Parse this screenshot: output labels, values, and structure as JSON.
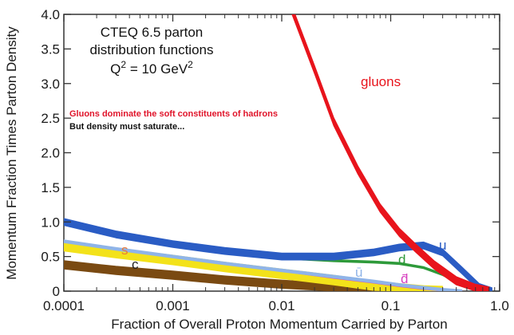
{
  "chart_data": {
    "type": "area",
    "xscale": "log",
    "xlim": [
      0.0001,
      1.0
    ],
    "ylim": [
      0,
      4.0
    ],
    "xlabel": "Fraction of Overall Proton Momentum Carried by Parton",
    "ylabel": "Momentum Fraction Times Parton Density",
    "x_ticks": [
      {
        "value": 0.0001,
        "label": "0.0001"
      },
      {
        "value": 0.001,
        "label": "0.001"
      },
      {
        "value": 0.01,
        "label": "0.01"
      },
      {
        "value": 0.1,
        "label": "0.1"
      },
      {
        "value": 1.0,
        "label": "1.0"
      }
    ],
    "y_ticks": [
      {
        "value": 0,
        "label": "0"
      },
      {
        "value": 0.5,
        "label": "0.5"
      },
      {
        "value": 1.0,
        "label": "1.0"
      },
      {
        "value": 1.5,
        "label": "1.5"
      },
      {
        "value": 2.0,
        "label": "2.0"
      },
      {
        "value": 2.5,
        "label": "2.5"
      },
      {
        "value": 3.0,
        "label": "3.0"
      },
      {
        "value": 3.5,
        "label": "3.5"
      },
      {
        "value": 4.0,
        "label": "4.0"
      }
    ],
    "info_box": {
      "line1": "CTEQ 6.5 parton",
      "line2": "distribution functions",
      "line3_prefix": "Q",
      "line3_sup": "2",
      "line3_mid": " = 10 GeV",
      "line3_sup2": "2"
    },
    "annotations": [
      {
        "text": "Gluons dominate the soft constituents of hadrons",
        "color": "#e0142a"
      },
      {
        "text": "But density must saturate...",
        "color": "#111111"
      }
    ],
    "series": [
      {
        "name": "gluons",
        "color": "#e8141c",
        "x": [
          0.0125,
          0.02,
          0.03,
          0.05,
          0.08,
          0.12,
          0.17,
          0.25,
          0.4,
          0.6,
          0.8
        ],
        "y": [
          4.05,
          3.2,
          2.45,
          1.75,
          1.2,
          0.85,
          0.62,
          0.38,
          0.15,
          0.04,
          0.0
        ],
        "band": 0.12
      },
      {
        "name": "u",
        "color": "#2a5cc4",
        "x": [
          0.0001,
          0.0003,
          0.001,
          0.003,
          0.01,
          0.03,
          0.07,
          0.12,
          0.2,
          0.3,
          0.45,
          0.65,
          0.85
        ],
        "y": [
          1.0,
          0.82,
          0.68,
          0.58,
          0.5,
          0.5,
          0.56,
          0.63,
          0.66,
          0.56,
          0.3,
          0.06,
          0.0
        ],
        "band": 0.1
      },
      {
        "name": "d",
        "color": "#2e9a3a",
        "x": [
          0.0001,
          0.0003,
          0.001,
          0.003,
          0.01,
          0.03,
          0.07,
          0.12,
          0.2,
          0.3,
          0.45,
          0.65,
          0.85
        ],
        "y": [
          0.98,
          0.8,
          0.66,
          0.56,
          0.48,
          0.44,
          0.42,
          0.4,
          0.34,
          0.24,
          0.1,
          0.02,
          0.0
        ],
        "band": 0.03
      },
      {
        "name": "ū",
        "color": "#8fb4e8",
        "x": [
          0.0001,
          0.0003,
          0.001,
          0.003,
          0.01,
          0.03,
          0.07,
          0.12,
          0.2,
          0.3,
          0.45
        ],
        "y": [
          0.72,
          0.61,
          0.5,
          0.4,
          0.3,
          0.21,
          0.14,
          0.09,
          0.05,
          0.02,
          0.0
        ],
        "band": 0.04
      },
      {
        "name": "d̄",
        "color": "#d63fbf",
        "x": [
          0.0001,
          0.0003,
          0.001,
          0.003,
          0.01,
          0.03,
          0.07,
          0.12,
          0.2,
          0.3,
          0.45
        ],
        "y": [
          0.72,
          0.61,
          0.5,
          0.4,
          0.3,
          0.2,
          0.13,
          0.08,
          0.04,
          0.015,
          0.0
        ],
        "band": 0.03
      },
      {
        "name": "s",
        "color": "#f3e21a",
        "x": [
          0.0001,
          0.0003,
          0.001,
          0.003,
          0.01,
          0.03,
          0.07,
          0.12,
          0.2,
          0.3
        ],
        "y": [
          0.65,
          0.55,
          0.45,
          0.35,
          0.25,
          0.16,
          0.08,
          0.04,
          0.01,
          0.0
        ],
        "band": 0.14
      },
      {
        "name": "c",
        "color": "#7a4a12",
        "x": [
          0.0001,
          0.0003,
          0.001,
          0.003,
          0.01,
          0.03,
          0.07,
          0.12,
          0.2
        ],
        "y": [
          0.38,
          0.3,
          0.23,
          0.16,
          0.1,
          0.05,
          0.02,
          0.005,
          0.0
        ],
        "band": 0.12
      }
    ]
  }
}
